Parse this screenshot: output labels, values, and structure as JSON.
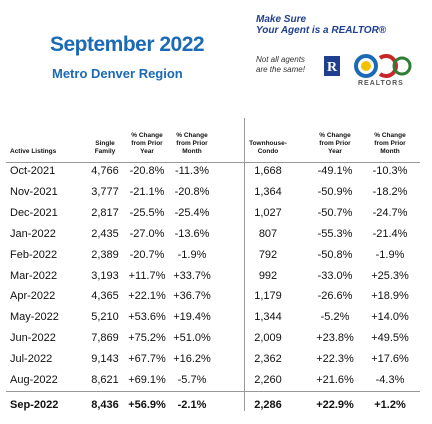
{
  "header": {
    "title": "September 2022",
    "subtitle": "Metro Denver Region",
    "promo_line1": "Make Sure",
    "promo_line2": "Your Agent is a REALTOR®",
    "promo_note": "Not all agents are the same!",
    "logo_text": "REALTORS"
  },
  "table": {
    "columns": [
      "Active Listings",
      "Single Family",
      "% Change from Prior Year",
      "% Change from Prior Month",
      "Townhouse-Condo",
      "% Change from Prior Year",
      "% Change from Prior Month"
    ],
    "rows": [
      [
        "Oct-2021",
        "4,766",
        "-20.8%",
        "-11.3%",
        "1,668",
        "-49.1%",
        "-10.3%"
      ],
      [
        "Nov-2021",
        "3,777",
        "-21.1%",
        "-20.8%",
        "1,364",
        "-50.9%",
        "-18.2%"
      ],
      [
        "Dec-2021",
        "2,817",
        "-25.5%",
        "-25.4%",
        "1,027",
        "-50.7%",
        "-24.7%"
      ],
      [
        "Jan-2022",
        "2,435",
        "-27.0%",
        "-13.6%",
        "807",
        "-55.3%",
        "-21.4%"
      ],
      [
        "Feb-2022",
        "2,389",
        "-20.7%",
        "-1.9%",
        "792",
        "-50.8%",
        "-1.9%"
      ],
      [
        "Mar-2022",
        "3,193",
        "+11.7%",
        "+33.7%",
        "992",
        "-33.0%",
        "+25.3%"
      ],
      [
        "Apr-2022",
        "4,365",
        "+22.1%",
        "+36.7%",
        "1,179",
        "-26.6%",
        "+18.9%"
      ],
      [
        "May-2022",
        "5,210",
        "+53.6%",
        "+19.4%",
        "1,344",
        "-5.2%",
        "+14.0%"
      ],
      [
        "Jun-2022",
        "7,869",
        "+75.2%",
        "+51.0%",
        "2,009",
        "+23.8%",
        "+49.5%"
      ],
      [
        "Jul-2022",
        "9,143",
        "+67.7%",
        "+16.2%",
        "2,362",
        "+22.3%",
        "+17.6%"
      ],
      [
        "Aug-2022",
        "8,621",
        "+69.1%",
        "-5.7%",
        "2,260",
        "+21.6%",
        "-4.3%"
      ],
      [
        "Sep-2022",
        "8,436",
        "+56.9%",
        "-2.1%",
        "2,286",
        "+22.9%",
        "+1.2%"
      ]
    ]
  }
}
